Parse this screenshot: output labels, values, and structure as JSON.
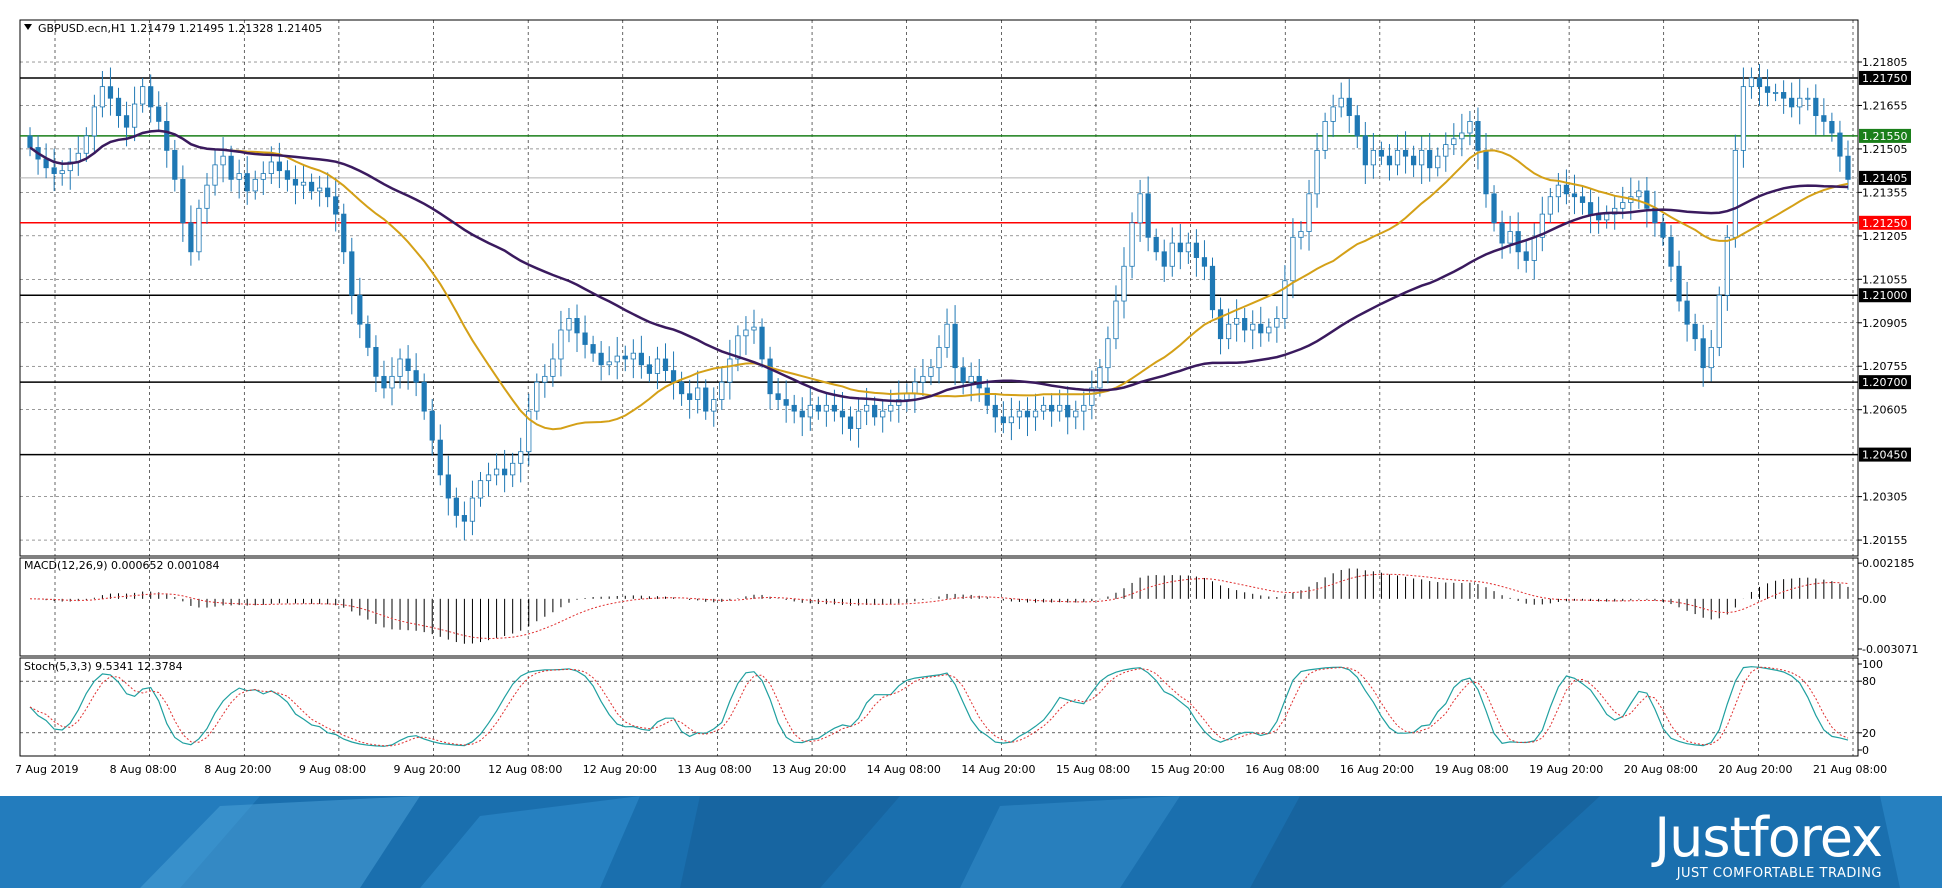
{
  "header": {
    "title": "GBPUSD.ecn,H1  1.21479 1.21495 1.21328 1.21405"
  },
  "chart_data": {
    "type": "candlestick",
    "symbol": "GBPUSD.ecn",
    "timeframe": "H1",
    "ohlc_last": {
      "open": 1.21479,
      "high": 1.21495,
      "low": 1.21328,
      "close": 1.21405
    },
    "price_axis": {
      "ylim": [
        1.201,
        1.2195
      ],
      "ticks": [
        "1.21805",
        "1.21655",
        "1.21505",
        "1.21355",
        "1.21205",
        "1.21055",
        "1.20905",
        "1.20755",
        "1.20605",
        "1.20305",
        "1.20155"
      ]
    },
    "time_axis": {
      "ticks": [
        "7 Aug 2019",
        "8 Aug 08:00",
        "8 Aug 20:00",
        "9 Aug 08:00",
        "9 Aug 20:00",
        "12 Aug 08:00",
        "12 Aug 20:00",
        "13 Aug 08:00",
        "13 Aug 20:00",
        "14 Aug 08:00",
        "14 Aug 20:00",
        "15 Aug 08:00",
        "15 Aug 20:00",
        "16 Aug 08:00",
        "16 Aug 20:00",
        "19 Aug 08:00",
        "19 Aug 20:00",
        "20 Aug 08:00",
        "20 Aug 20:00",
        "21 Aug 08:00"
      ]
    },
    "levels": [
      {
        "price": 1.2175,
        "label": "1.21750",
        "color": "#000000"
      },
      {
        "price": 1.2155,
        "label": "1.21550",
        "color": "#1a7f1a"
      },
      {
        "price": 1.21405,
        "label": "1.21405",
        "color": "#b0b0b0"
      },
      {
        "price": 1.2125,
        "label": "1.21250",
        "color": "#ff0000"
      },
      {
        "price": 1.21,
        "label": "1.21000",
        "color": "#000000"
      },
      {
        "price": 1.207,
        "label": "1.20700",
        "color": "#000000"
      },
      {
        "price": 1.2045,
        "label": "1.20450",
        "color": "#000000"
      }
    ],
    "candle_color_up": "#ffffff",
    "candle_color_down": "#1f78b4",
    "ma_fast_color": "#d4a017",
    "ma_slow_color": "#3a1a5e",
    "closes": [
      1.2151,
      1.2147,
      1.2144,
      1.2142,
      1.2143,
      1.2146,
      1.2149,
      1.2155,
      1.2165,
      1.2172,
      1.2168,
      1.2162,
      1.2158,
      1.2166,
      1.2172,
      1.2165,
      1.216,
      1.215,
      1.214,
      1.2125,
      1.2115,
      1.213,
      1.2138,
      1.2145,
      1.2148,
      1.214,
      1.2142,
      1.2136,
      1.214,
      1.2142,
      1.2146,
      1.2143,
      1.214,
      1.2138,
      1.2139,
      1.2136,
      1.2137,
      1.2134,
      1.2128,
      1.2115,
      1.21,
      1.209,
      1.2082,
      1.2072,
      1.2068,
      1.2072,
      1.2078,
      1.2074,
      1.207,
      1.206,
      1.205,
      1.2038,
      1.203,
      1.2024,
      1.2022,
      1.203,
      1.2036,
      1.2038,
      1.204,
      1.2038,
      1.2042,
      1.2046,
      1.206,
      1.207,
      1.2072,
      1.2078,
      1.2088,
      1.2092,
      1.2087,
      1.2083,
      1.208,
      1.2076,
      1.2077,
      1.2079,
      1.2078,
      1.208,
      1.2076,
      1.2073,
      1.2078,
      1.2074,
      1.207,
      1.2066,
      1.2064,
      1.2068,
      1.206,
      1.2064,
      1.207,
      1.2078,
      1.2086,
      1.2088,
      1.2089,
      1.2078,
      1.2066,
      1.2064,
      1.2062,
      1.206,
      1.2058,
      1.2062,
      1.206,
      1.2062,
      1.206,
      1.2058,
      1.2054,
      1.206,
      1.2062,
      1.2058,
      1.206,
      1.2062,
      1.2064,
      1.2066,
      1.207,
      1.2072,
      1.2075,
      1.2082,
      1.209,
      1.2075,
      1.207,
      1.2072,
      1.2068,
      1.2062,
      1.2058,
      1.2056,
      1.2058,
      1.206,
      1.2058,
      1.206,
      1.2062,
      1.206,
      1.2062,
      1.2058,
      1.206,
      1.2062,
      1.2068,
      1.2075,
      1.2085,
      1.2098,
      1.211,
      1.2125,
      1.2135,
      1.212,
      1.2115,
      1.211,
      1.2118,
      1.2115,
      1.2118,
      1.2113,
      1.211,
      1.2095,
      1.2085,
      1.209,
      1.2092,
      1.2088,
      1.209,
      1.2087,
      1.2089,
      1.2092,
      1.2105,
      1.212,
      1.2122,
      1.2135,
      1.215,
      1.216,
      1.2165,
      1.2168,
      1.2162,
      1.2155,
      1.2145,
      1.215,
      1.2148,
      1.2145,
      1.215,
      1.2148,
      1.2145,
      1.215,
      1.2144,
      1.2148,
      1.2152,
      1.2154,
      1.2156,
      1.216,
      1.215,
      1.2135,
      1.2125,
      1.2118,
      1.2122,
      1.2115,
      1.2112,
      1.212,
      1.2128,
      1.2134,
      1.2138,
      1.2135,
      1.2134,
      1.2132,
      1.2128,
      1.2126,
      1.2128,
      1.213,
      1.2132,
      1.2134,
      1.2136,
      1.213,
      1.2125,
      1.212,
      1.211,
      1.2098,
      1.209,
      1.2085,
      1.2075,
      1.2082,
      1.21,
      1.212,
      1.215,
      1.2172,
      1.2175,
      1.2172,
      1.217,
      1.217,
      1.2168,
      1.2165,
      1.2168,
      1.2168,
      1.2162,
      1.216,
      1.2156,
      1.2148,
      1.214
    ],
    "macd": {
      "label": "MACD(12,26,9) 0.000652 0.001084",
      "ticks": [
        "0.002185",
        "0.00",
        "-0.003071"
      ],
      "ylim": [
        -0.0035,
        0.0025
      ],
      "hist_color": "#000000",
      "signal_color": "#e03030"
    },
    "stoch": {
      "label": "Stoch(5,3,3) 9.5341 12.3784",
      "ticks": [
        "100",
        "80",
        "20",
        "0"
      ],
      "main_color": "#20a0a0",
      "signal_color": "#e03030",
      "levels": [
        80,
        20
      ]
    }
  },
  "brand": {
    "name": "Justforex",
    "tagline": "JUST COMFORTABLE TRADING"
  }
}
